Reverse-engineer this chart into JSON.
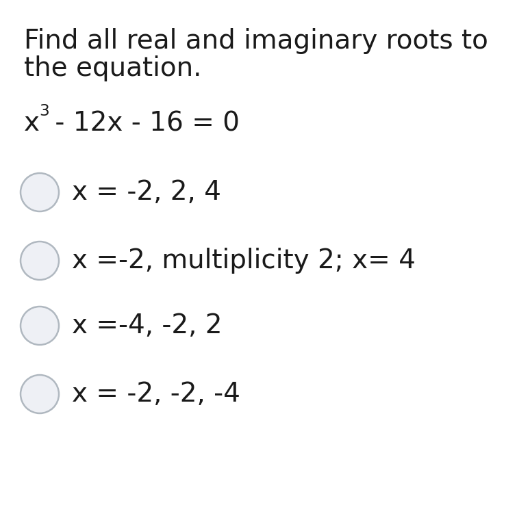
{
  "background_color": "#ffffff",
  "text_color": "#1a1a1a",
  "question_line1": "Find all real and imaginary roots to",
  "question_line2": "the equation.",
  "options": [
    "x = -2, 2, 4",
    "x =-2, multiplicity 2; x= 4",
    "x =-4, -2, 2",
    "x = -2, -2, -4"
  ],
  "circle_color": "#b0b8c0",
  "circle_fill": "#eef0f5",
  "figsize": [
    7.74,
    7.41
  ],
  "dpi": 100
}
